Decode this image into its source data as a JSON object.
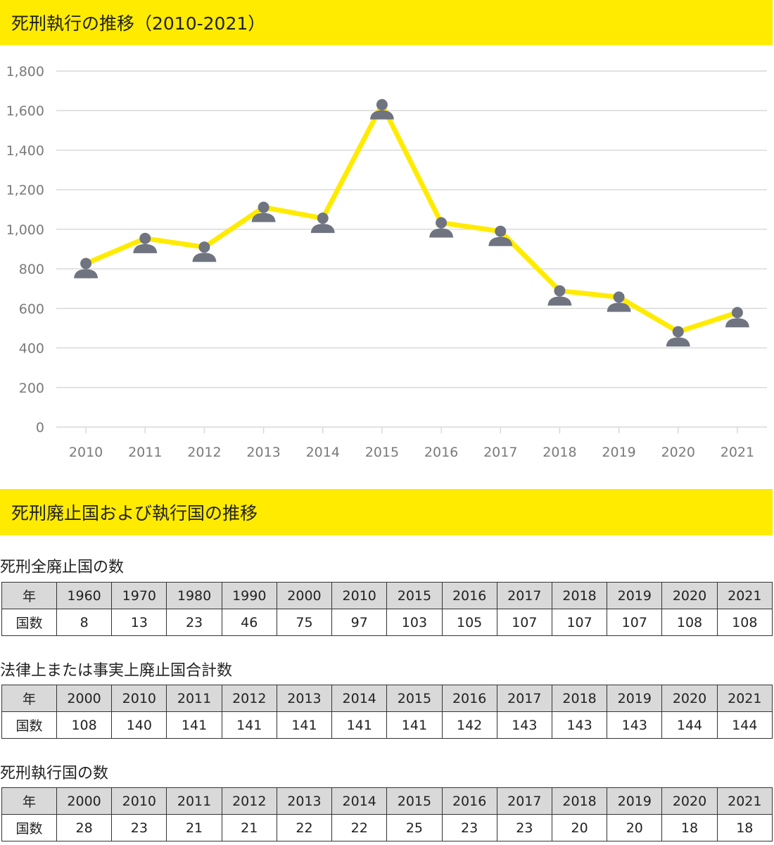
{
  "banner1": {
    "title": "死刑執行の推移（2010-2021）"
  },
  "chart_data": {
    "type": "line",
    "title": "死刑執行の推移（2010-2021）",
    "categories": [
      "2010",
      "2011",
      "2012",
      "2013",
      "2014",
      "2015",
      "2016",
      "2017",
      "2018",
      "2019",
      "2020",
      "2021"
    ],
    "values": [
      827,
      954,
      910,
      1111,
      1056,
      1630,
      1033,
      990,
      689,
      657,
      482,
      579
    ],
    "ylim": [
      0,
      1800
    ],
    "yticks": [
      0,
      200,
      400,
      600,
      800,
      1000,
      1200,
      1400,
      1600,
      1800
    ],
    "ytick_labels": [
      "0",
      "200",
      "400",
      "600",
      "800",
      "1,000",
      "1,200",
      "1,400",
      "1,600",
      "1,800"
    ],
    "marker": "person-icon",
    "line_color": "#ffeb00",
    "marker_color": "#6f7480",
    "grid": true,
    "xlabel": "",
    "ylabel": ""
  },
  "banner2": {
    "title": "死刑廃止国および執行国の推移"
  },
  "tables": [
    {
      "heading": "死刑全廃止国の数",
      "header_label": "年",
      "row_label": "国数",
      "years": [
        "1960",
        "1970",
        "1980",
        "1990",
        "2000",
        "2010",
        "2015",
        "2016",
        "2017",
        "2018",
        "2019",
        "2020",
        "2021"
      ],
      "counts": [
        "8",
        "13",
        "23",
        "46",
        "75",
        "97",
        "103",
        "105",
        "107",
        "107",
        "107",
        "108",
        "108"
      ]
    },
    {
      "heading": "法律上または事実上廃止国合計数",
      "header_label": "年",
      "row_label": "国数",
      "years": [
        "2000",
        "2010",
        "2011",
        "2012",
        "2013",
        "2014",
        "2015",
        "2016",
        "2017",
        "2018",
        "2019",
        "2020",
        "2021"
      ],
      "counts": [
        "108",
        "140",
        "141",
        "141",
        "141",
        "141",
        "141",
        "142",
        "143",
        "143",
        "143",
        "144",
        "144"
      ]
    },
    {
      "heading": "死刑執行国の数",
      "header_label": "年",
      "row_label": "国数",
      "years": [
        "2000",
        "2010",
        "2011",
        "2012",
        "2013",
        "2014",
        "2015",
        "2016",
        "2017",
        "2018",
        "2019",
        "2020",
        "2021"
      ],
      "counts": [
        "28",
        "23",
        "21",
        "21",
        "22",
        "22",
        "25",
        "23",
        "23",
        "20",
        "20",
        "18",
        "18"
      ]
    }
  ]
}
